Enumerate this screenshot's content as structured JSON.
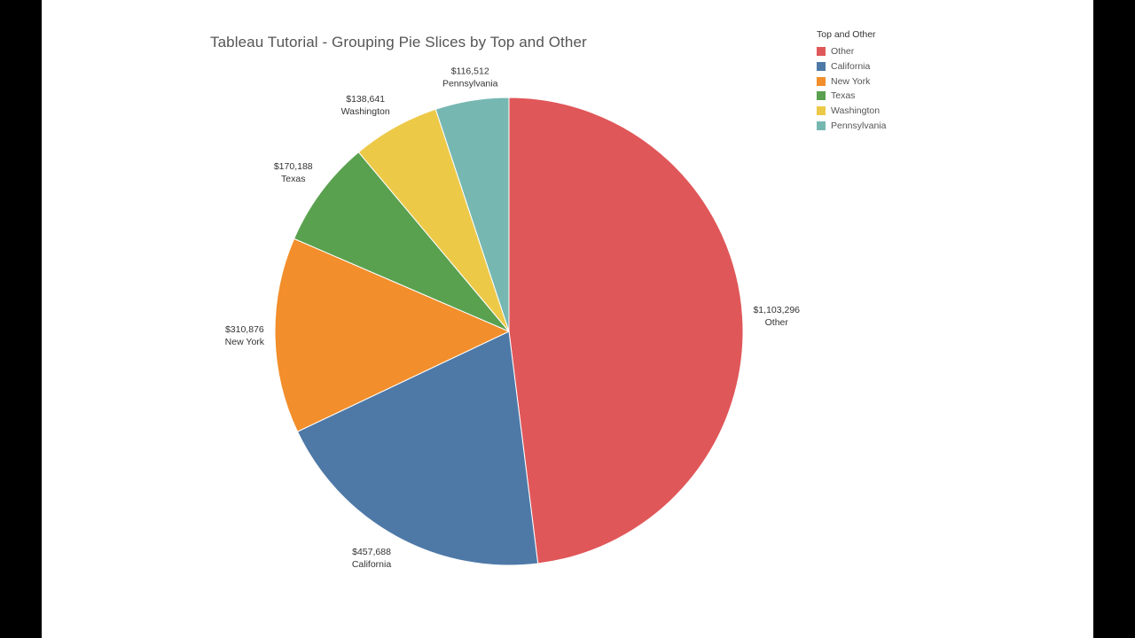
{
  "colors": {
    "Other": "#e05759",
    "California": "#4e79a7",
    "New York": "#f28e2b",
    "Texas": "#59a14f",
    "Washington": "#edc948",
    "Pennsylvania": "#76b7b2"
  },
  "chart_data": {
    "type": "pie",
    "title": "Tableau Tutorial - Grouping Pie Slices by Top and Other",
    "legend": {
      "title": "Top and Other",
      "placement": "top-right",
      "entries": [
        "Other",
        "California",
        "New York",
        "Texas",
        "Washington",
        "Pennsylvania"
      ]
    },
    "slices": [
      {
        "name": "Other",
        "value": 1103296,
        "value_label": "$1,103,296"
      },
      {
        "name": "California",
        "value": 457688,
        "value_label": "$457,688"
      },
      {
        "name": "New York",
        "value": 310876,
        "value_label": "$310,876"
      },
      {
        "name": "Texas",
        "value": 170188,
        "value_label": "$170,188"
      },
      {
        "name": "Washington",
        "value": 138641,
        "value_label": "$138,641"
      },
      {
        "name": "Pennsylvania",
        "value": 116512,
        "value_label": "$116,512"
      }
    ]
  }
}
